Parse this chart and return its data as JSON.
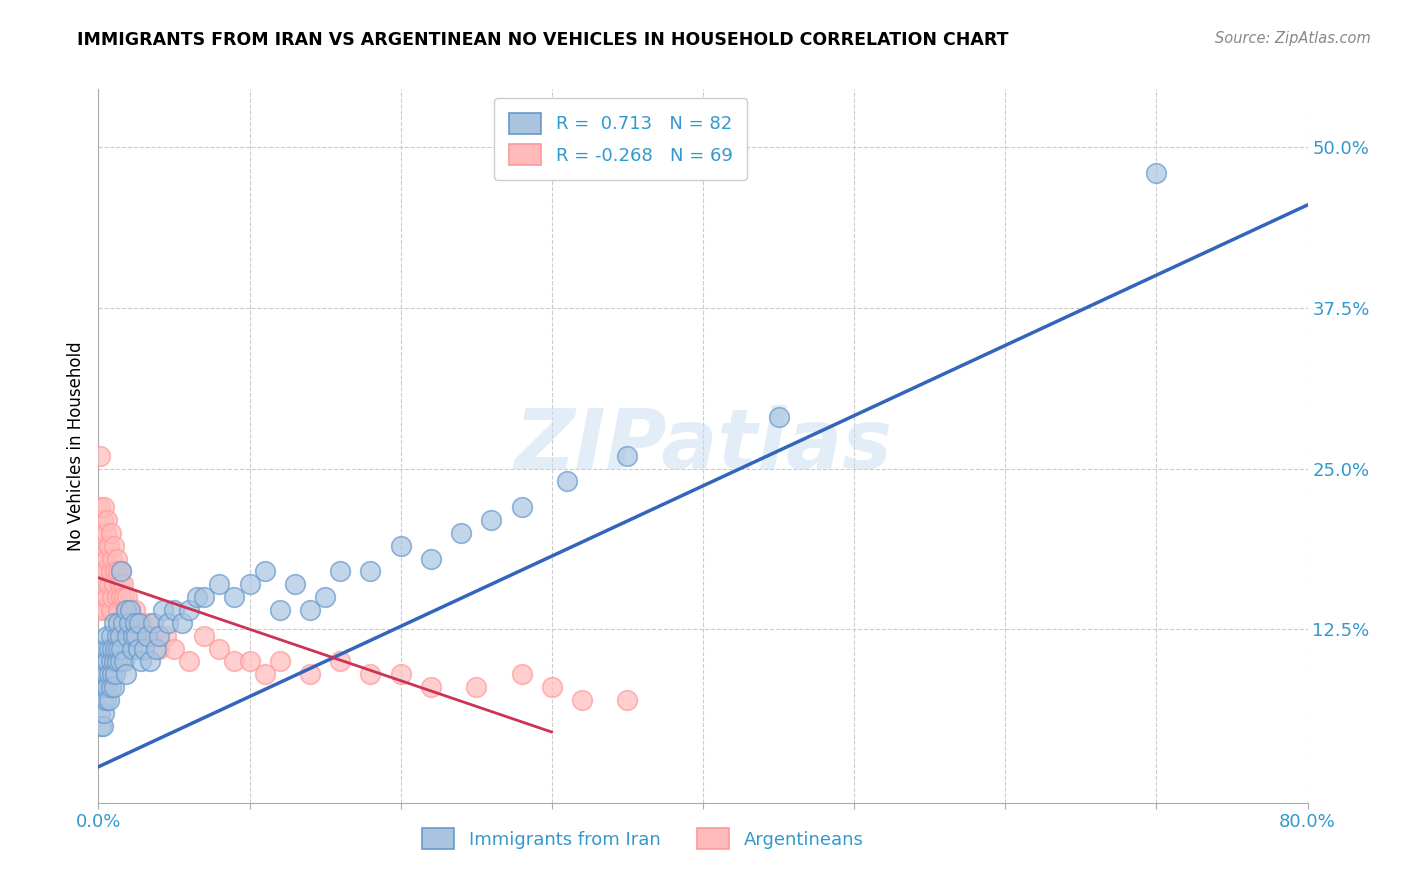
{
  "title": "IMMIGRANTS FROM IRAN VS ARGENTINEAN NO VEHICLES IN HOUSEHOLD CORRELATION CHART",
  "source": "Source: ZipAtlas.com",
  "ylabel": "No Vehicles in Household",
  "xlim": [
    0.0,
    0.8
  ],
  "ylim": [
    -0.01,
    0.545
  ],
  "xticks": [
    0.0,
    0.1,
    0.2,
    0.3,
    0.4,
    0.5,
    0.6,
    0.7,
    0.8
  ],
  "yticks_right": [
    0.0,
    0.125,
    0.25,
    0.375,
    0.5
  ],
  "ytick_labels_right": [
    "",
    "12.5%",
    "25.0%",
    "37.5%",
    "50.0%"
  ],
  "grid_color": "#cccccc",
  "background_color": "#ffffff",
  "blue_scatter_color": "#aac4e0",
  "blue_edge_color": "#6699cc",
  "pink_scatter_color": "#ffbbbb",
  "pink_edge_color": "#ff9999",
  "blue_line_color": "#3366bb",
  "pink_line_color": "#cc3355",
  "watermark": "ZIPatlas",
  "legend_R_blue": "0.713",
  "legend_N_blue": "82",
  "legend_R_pink": "-0.268",
  "legend_N_pink": "69",
  "legend_label_blue": "Immigrants from Iran",
  "legend_label_pink": "Argentineans",
  "blue_trendline_x": [
    0.0,
    0.8
  ],
  "blue_trendline_y": [
    0.018,
    0.455
  ],
  "pink_trendline_x": [
    0.0,
    0.3
  ],
  "pink_trendline_y": [
    0.165,
    0.045
  ],
  "blue_scatter_x": [
    0.001,
    0.002,
    0.002,
    0.003,
    0.003,
    0.003,
    0.004,
    0.004,
    0.004,
    0.005,
    0.005,
    0.005,
    0.006,
    0.006,
    0.006,
    0.007,
    0.007,
    0.007,
    0.008,
    0.008,
    0.008,
    0.009,
    0.009,
    0.01,
    0.01,
    0.01,
    0.011,
    0.011,
    0.012,
    0.012,
    0.013,
    0.013,
    0.014,
    0.014,
    0.015,
    0.015,
    0.016,
    0.017,
    0.018,
    0.018,
    0.019,
    0.02,
    0.021,
    0.022,
    0.023,
    0.024,
    0.025,
    0.026,
    0.027,
    0.028,
    0.03,
    0.032,
    0.034,
    0.036,
    0.038,
    0.04,
    0.043,
    0.046,
    0.05,
    0.055,
    0.06,
    0.065,
    0.07,
    0.08,
    0.09,
    0.1,
    0.11,
    0.12,
    0.13,
    0.14,
    0.15,
    0.16,
    0.18,
    0.2,
    0.22,
    0.24,
    0.26,
    0.28,
    0.31,
    0.35,
    0.45,
    0.7
  ],
  "blue_scatter_y": [
    0.06,
    0.08,
    0.05,
    0.09,
    0.07,
    0.05,
    0.1,
    0.08,
    0.06,
    0.11,
    0.09,
    0.07,
    0.12,
    0.1,
    0.08,
    0.11,
    0.09,
    0.07,
    0.12,
    0.1,
    0.08,
    0.11,
    0.09,
    0.13,
    0.1,
    0.08,
    0.11,
    0.09,
    0.12,
    0.1,
    0.13,
    0.11,
    0.12,
    0.1,
    0.17,
    0.11,
    0.13,
    0.1,
    0.14,
    0.09,
    0.12,
    0.13,
    0.14,
    0.11,
    0.12,
    0.13,
    0.12,
    0.11,
    0.13,
    0.1,
    0.11,
    0.12,
    0.1,
    0.13,
    0.11,
    0.12,
    0.14,
    0.13,
    0.14,
    0.13,
    0.14,
    0.15,
    0.15,
    0.16,
    0.15,
    0.16,
    0.17,
    0.14,
    0.16,
    0.14,
    0.15,
    0.17,
    0.17,
    0.19,
    0.18,
    0.2,
    0.21,
    0.22,
    0.24,
    0.26,
    0.29,
    0.48
  ],
  "pink_scatter_x": [
    0.001,
    0.001,
    0.002,
    0.002,
    0.002,
    0.003,
    0.003,
    0.003,
    0.004,
    0.004,
    0.004,
    0.005,
    0.005,
    0.005,
    0.006,
    0.006,
    0.006,
    0.007,
    0.007,
    0.008,
    0.008,
    0.008,
    0.009,
    0.009,
    0.01,
    0.01,
    0.011,
    0.012,
    0.012,
    0.013,
    0.013,
    0.014,
    0.015,
    0.015,
    0.016,
    0.017,
    0.018,
    0.019,
    0.02,
    0.021,
    0.022,
    0.023,
    0.024,
    0.025,
    0.026,
    0.028,
    0.03,
    0.033,
    0.036,
    0.04,
    0.045,
    0.05,
    0.06,
    0.07,
    0.08,
    0.09,
    0.1,
    0.11,
    0.12,
    0.14,
    0.16,
    0.18,
    0.2,
    0.22,
    0.25,
    0.28,
    0.3,
    0.32,
    0.35
  ],
  "pink_scatter_y": [
    0.26,
    0.22,
    0.2,
    0.17,
    0.14,
    0.21,
    0.18,
    0.15,
    0.22,
    0.19,
    0.16,
    0.2,
    0.17,
    0.14,
    0.21,
    0.18,
    0.15,
    0.19,
    0.16,
    0.2,
    0.17,
    0.14,
    0.18,
    0.15,
    0.19,
    0.16,
    0.17,
    0.18,
    0.15,
    0.17,
    0.14,
    0.16,
    0.17,
    0.15,
    0.16,
    0.15,
    0.14,
    0.15,
    0.13,
    0.14,
    0.13,
    0.12,
    0.14,
    0.13,
    0.12,
    0.13,
    0.12,
    0.13,
    0.12,
    0.11,
    0.12,
    0.11,
    0.1,
    0.12,
    0.11,
    0.1,
    0.1,
    0.09,
    0.1,
    0.09,
    0.1,
    0.09,
    0.09,
    0.08,
    0.08,
    0.09,
    0.08,
    0.07,
    0.07
  ]
}
